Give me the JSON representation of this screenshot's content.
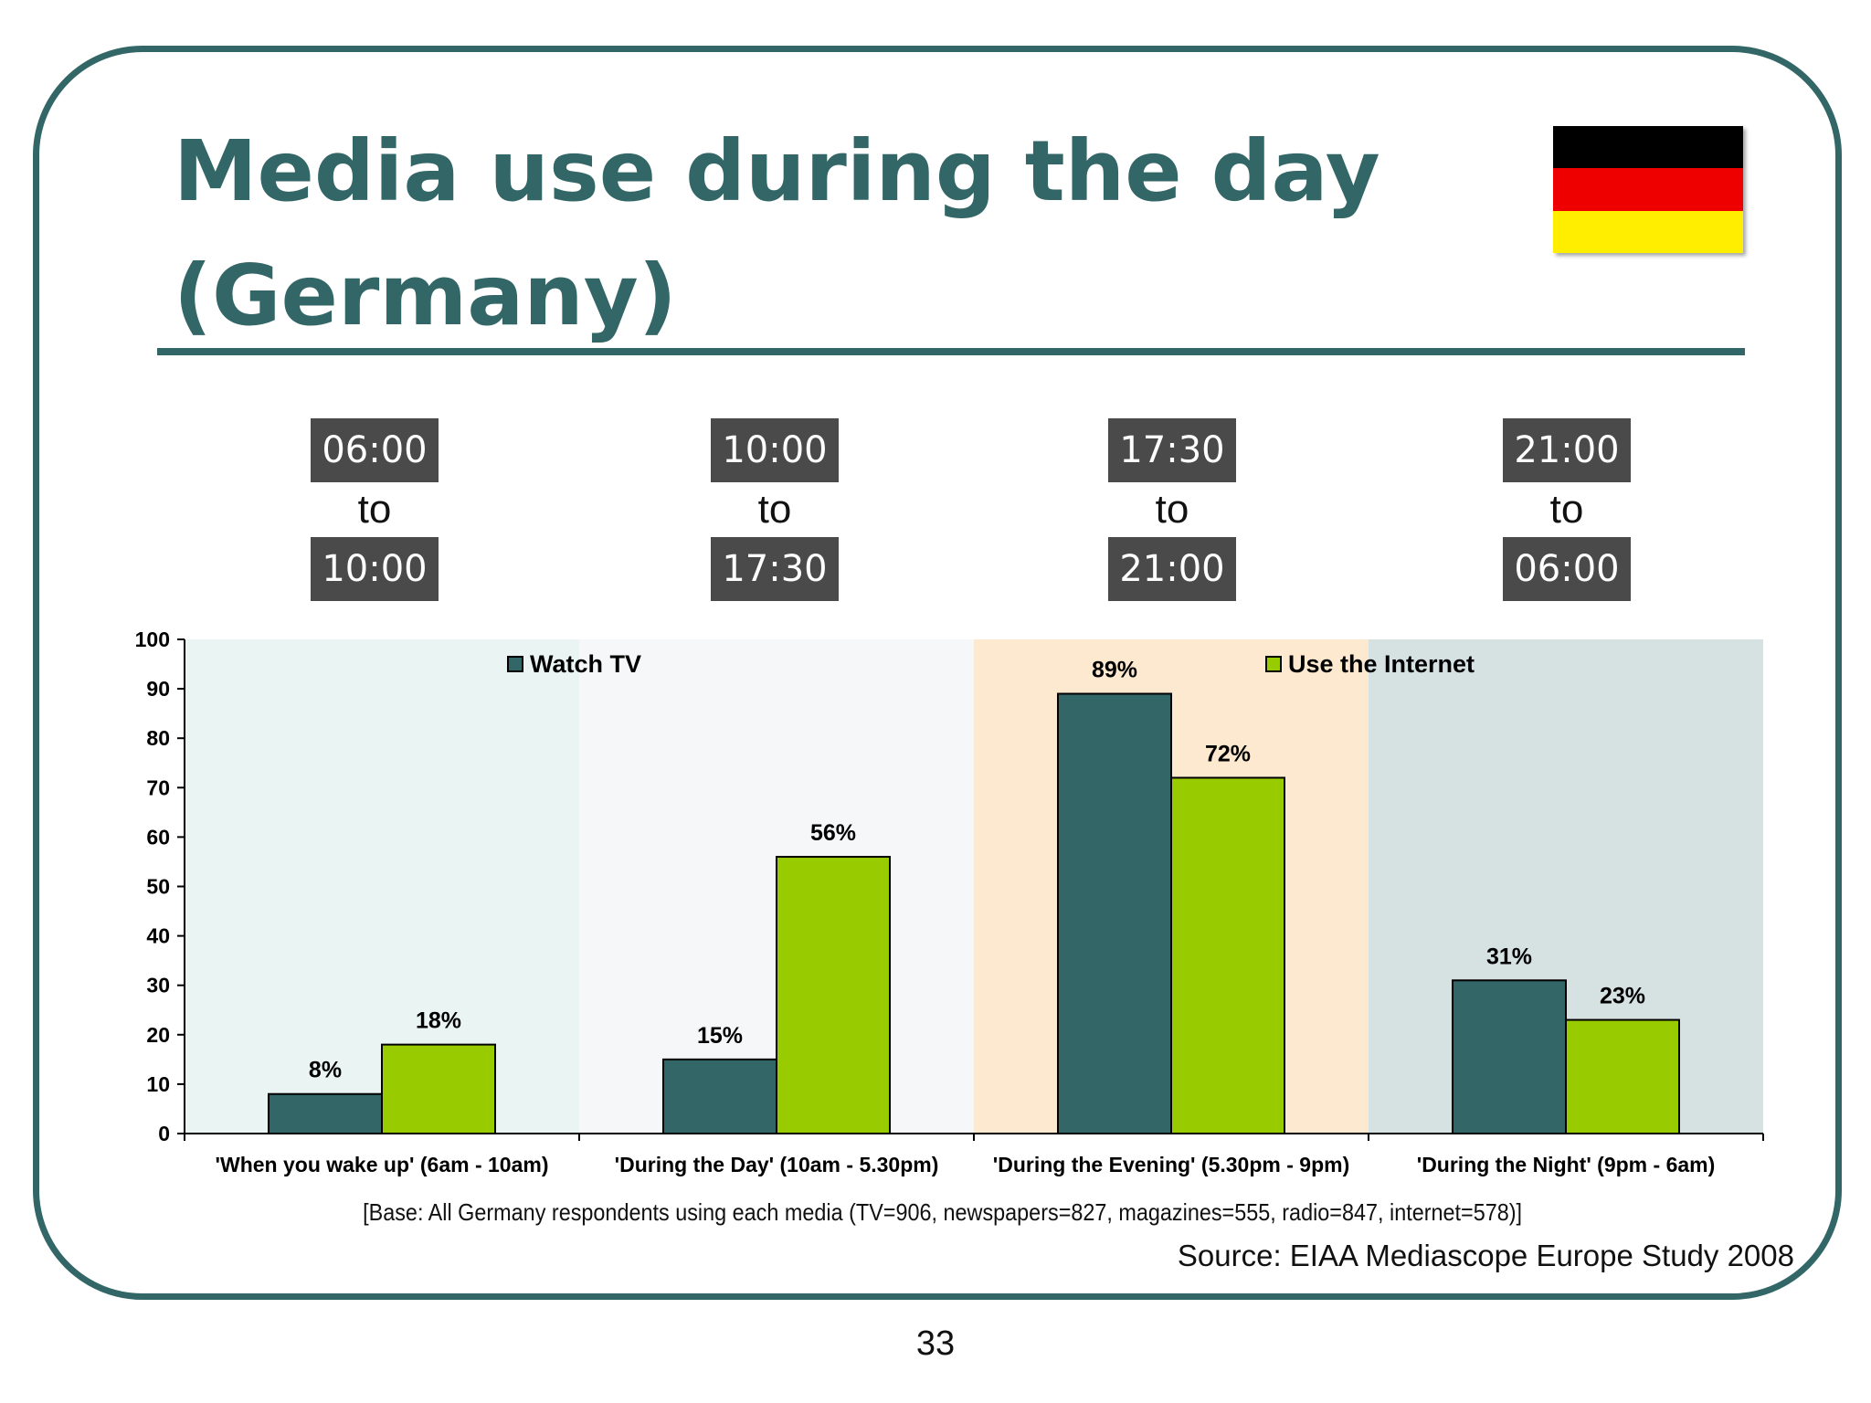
{
  "slide": {
    "title": "Media use during the day (Germany)",
    "base_note": "[Base: All Germany respondents using each media (TV=906, newspapers=827, magazines=555, radio=847, internet=578)]",
    "source": "Source: EIAA Mediascope Europe Study 2008",
    "page_number": "33",
    "flag_colors": [
      "#000000",
      "#ee0000",
      "#ffee00"
    ]
  },
  "time_slots": [
    {
      "from": "06:00",
      "to_word": "to",
      "until": "10:00"
    },
    {
      "from": "10:00",
      "to_word": "to",
      "until": "17:30"
    },
    {
      "from": "17:30",
      "to_word": "to",
      "until": "21:00"
    },
    {
      "from": "21:00",
      "to_word": "to",
      "until": "06:00"
    }
  ],
  "chart_data": {
    "type": "bar",
    "categories": [
      "'When you wake up' (6am - 10am)",
      "'During the Day' (10am - 5.30pm)",
      "'During the Evening' (5.30pm - 9pm)",
      "'During the Night' (9pm - 6am)"
    ],
    "series": [
      {
        "name": "Watch TV",
        "values": [
          8,
          15,
          89,
          31
        ],
        "labels": [
          "8%",
          "15%",
          "89%",
          "31%"
        ],
        "color": "#336666"
      },
      {
        "name": "Use the Internet",
        "values": [
          18,
          56,
          72,
          23
        ],
        "labels": [
          "18%",
          "56%",
          "72%",
          "23%"
        ],
        "color": "#99cc00"
      }
    ],
    "ylim": [
      0,
      100
    ],
    "yticks": [
      0,
      10,
      20,
      30,
      40,
      50,
      60,
      70,
      80,
      90,
      100
    ],
    "band_colors": [
      "#eaf5f3",
      "#f6f7f9",
      "#fde9cf",
      "#d6e1e1"
    ],
    "legend": "top",
    "grid": false
  }
}
